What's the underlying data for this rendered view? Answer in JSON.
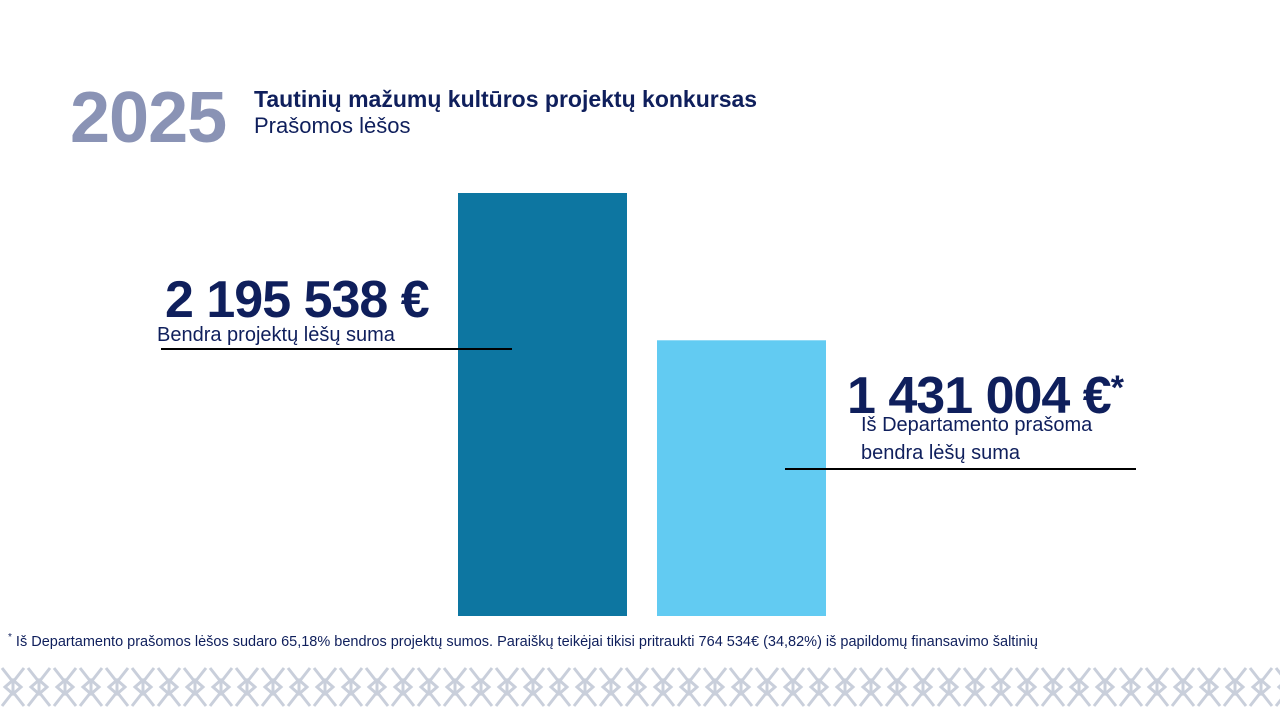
{
  "header": {
    "year": "2025",
    "title": "Tautinių mažumų kultūros projektų konkursas",
    "subtitle": "Prašomos lėšos"
  },
  "chart_data": {
    "type": "bar",
    "categories": [
      "Bendra projektų lėšų suma",
      "Iš Departamento prašoma bendra lėšų suma"
    ],
    "values": [
      2195538,
      1431004
    ],
    "value_labels": [
      "2 195 538 €",
      "1 431 004 €"
    ],
    "annotation_marker": "*",
    "colors": [
      "#0d76a1",
      "#62cbf2"
    ],
    "ylim": [
      0,
      2195538
    ],
    "grid": false,
    "axes_visible": false
  },
  "labels": {
    "total_label": "Bendra projektų lėšų suma",
    "requested_label_line1": "Iš Departamento prašoma",
    "requested_label_line2": "bendra lėšų suma"
  },
  "footnote": {
    "marker": "*",
    "text": " Iš Departamento prašomos lėšos sudaro 65,18% bendros projektų sumos. Paraiškų teikėjai tikisi pritraukti 764 534€ (34,82%) iš papildomų finansavimo šaltinių"
  },
  "decoration": {
    "pattern_color": "#c9cfdb"
  }
}
